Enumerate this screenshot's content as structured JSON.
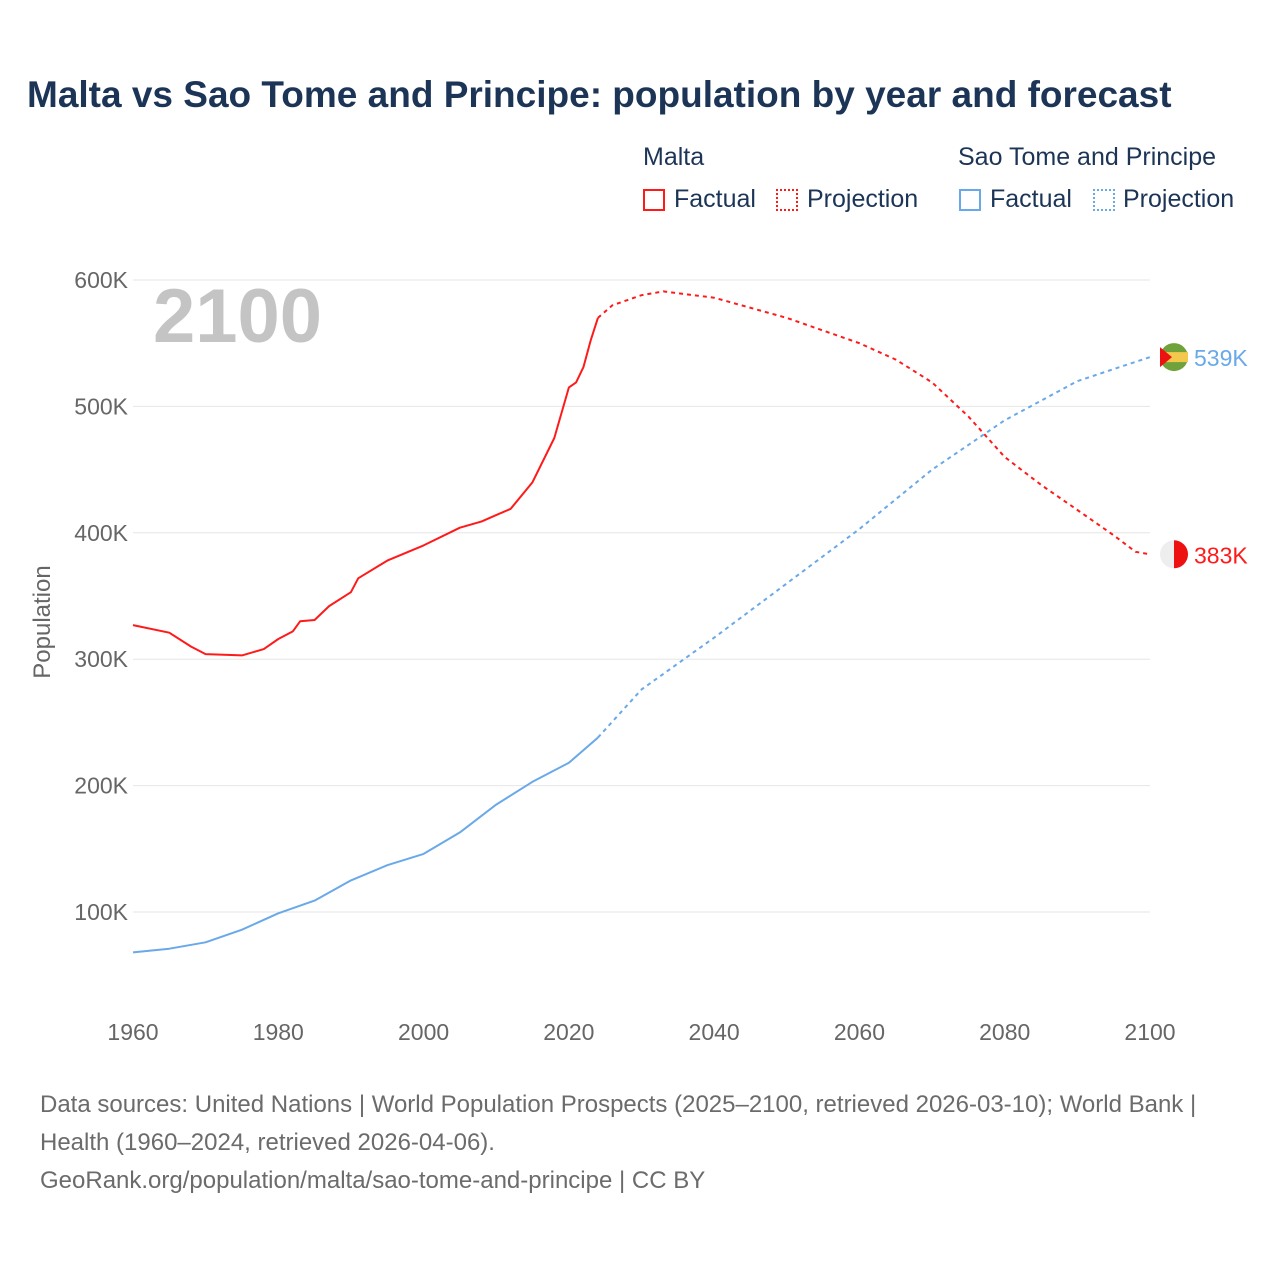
{
  "title": "Malta vs Sao Tome and Principe: population by year and forecast",
  "legend": {
    "groups": [
      {
        "name": "Malta",
        "factual": "Factual",
        "projection": "Projection",
        "color": "#ff1a1a"
      },
      {
        "name": "Sao Tome and Principe",
        "factual": "Factual",
        "projection": "Projection",
        "color": "#6aa9e9"
      }
    ]
  },
  "year_label": "2100",
  "footer": {
    "line1": "Data sources: United Nations | World Population Prospects (2025–2100, retrieved 2026-03-10); World Bank | Health (1960–2024, retrieved 2026-04-06).",
    "line2": "GeoRank.org/population/malta/sao-tome-and-principe | CC BY"
  },
  "chart_data": {
    "type": "line",
    "title": "Malta vs Sao Tome and Principe: population by year and forecast",
    "xlabel": "",
    "ylabel": "Population",
    "xlim": [
      1960,
      2100
    ],
    "ylim": [
      0,
      600000
    ],
    "x_ticks": [
      "1960",
      "1980",
      "2000",
      "2020",
      "2040",
      "2060",
      "2080",
      "2100"
    ],
    "y_ticks": [
      {
        "v": 100000,
        "label": "100K"
      },
      {
        "v": 200000,
        "label": "200K"
      },
      {
        "v": 300000,
        "label": "300K"
      },
      {
        "v": 400000,
        "label": "400K"
      },
      {
        "v": 500000,
        "label": "500K"
      },
      {
        "v": 600000,
        "label": "600K"
      }
    ],
    "grid": true,
    "series": [
      {
        "name": "Malta",
        "kind": "Factual",
        "color": "#ff1a1a",
        "x": [
          1960,
          1965,
          1968,
          1970,
          1975,
          1978,
          1980,
          1982,
          1983,
          1985,
          1987,
          1990,
          1991,
          1995,
          2000,
          2005,
          2008,
          2010,
          2012,
          2015,
          2018,
          2020,
          2021,
          2022,
          2023,
          2024
        ],
        "y": [
          327000,
          321000,
          310000,
          304000,
          303000,
          308000,
          316000,
          322000,
          330000,
          331000,
          342000,
          353000,
          364000,
          378000,
          390000,
          404000,
          409000,
          414000,
          419000,
          440000,
          475000,
          515000,
          519000,
          531000,
          552000,
          570000
        ]
      },
      {
        "name": "Malta",
        "kind": "Projection",
        "color": "#ff1a1a",
        "x": [
          2024,
          2026,
          2030,
          2033,
          2040,
          2050,
          2060,
          2065,
          2070,
          2075,
          2080,
          2085,
          2090,
          2095,
          2098,
          2100
        ],
        "y": [
          570000,
          580000,
          588000,
          591000,
          586000,
          570000,
          550000,
          537000,
          519000,
          492000,
          460000,
          438000,
          418000,
          398000,
          385000,
          383000
        ]
      },
      {
        "name": "Sao Tome and Principe",
        "kind": "Factual",
        "color": "#6aa9e9",
        "x": [
          1960,
          1965,
          1970,
          1975,
          1980,
          1985,
          1990,
          1995,
          2000,
          2005,
          2010,
          2015,
          2020,
          2024
        ],
        "y": [
          68000,
          71000,
          76000,
          86000,
          99000,
          109000,
          125000,
          137000,
          146000,
          163000,
          185000,
          203000,
          218000,
          238000
        ]
      },
      {
        "name": "Sao Tome and Principe",
        "kind": "Projection",
        "color": "#6aa9e9",
        "x": [
          2024,
          2030,
          2040,
          2050,
          2060,
          2070,
          2080,
          2090,
          2100
        ],
        "y": [
          238000,
          276000,
          317000,
          360000,
          403000,
          450000,
          489000,
          520000,
          539000
        ]
      }
    ],
    "end_labels": [
      {
        "series": "Sao Tome and Principe",
        "value": 539000,
        "label": "539K",
        "color": "#6aa9e9"
      },
      {
        "series": "Malta",
        "value": 383000,
        "label": "383K",
        "color": "#ff1a1a"
      }
    ]
  }
}
